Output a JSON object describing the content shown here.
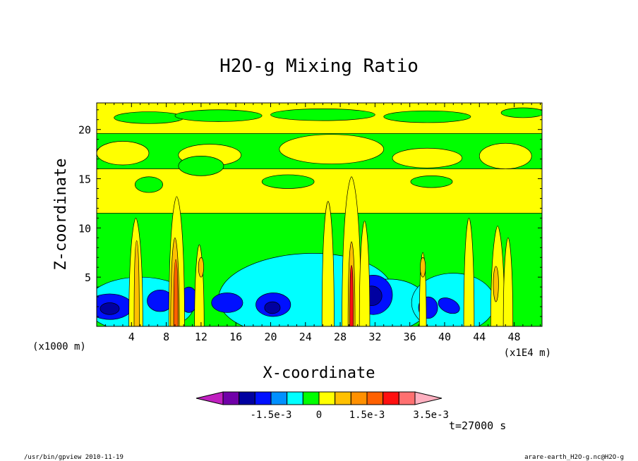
{
  "chart_data": {
    "type": "heatmap",
    "title": "H2O-g Mixing Ratio",
    "xlabel": "X-coordinate",
    "ylabel": "Z-coordinate",
    "x_unit_label": "(x1E4 m)",
    "y_unit_label": "(x1000 m)",
    "xlim": [
      0,
      51.2
    ],
    "ylim": [
      0,
      22.7
    ],
    "x_ticks": [
      4,
      8,
      12,
      16,
      20,
      24,
      28,
      32,
      36,
      40,
      44,
      48
    ],
    "y_ticks": [
      5,
      10,
      15,
      20
    ],
    "x_tick_labels": [
      "4",
      "8",
      "12",
      "16",
      "20",
      "24",
      "28",
      "32",
      "36",
      "40",
      "44",
      "48"
    ],
    "y_tick_labels": [
      "5",
      "10",
      "15",
      "20"
    ],
    "levels": [
      -0.0035,
      -0.003,
      -0.0025,
      -0.002,
      -0.0015,
      -0.001,
      -0.0005,
      0,
      0.0005,
      0.001,
      0.0015,
      0.002,
      0.0025,
      0.003,
      0.0035
    ],
    "colorbar_labels": [
      {
        "text": "-1.5e-3",
        "value": -0.0015
      },
      {
        "text": "0",
        "value": 0
      },
      {
        "text": "1.5e-3",
        "value": 0.0015
      },
      {
        "text": "3.5e-3",
        "value": 0.0035
      }
    ],
    "colors": [
      "#c020c0",
      "#7000a8",
      "#0000a0",
      "#0010ff",
      "#0090ff",
      "#00ffff",
      "#00ff00",
      "#ffff00",
      "#ffc000",
      "#ff9000",
      "#ff6000",
      "#ff1010",
      "#ff7070",
      "#ffb0c0"
    ],
    "grid": false
  },
  "annotation": {
    "time": "t=27000 s"
  },
  "footer": {
    "left": "/usr/bin/gpview   2010-11-19",
    "right": "arare-earth_H2O-g.nc@H2O-g"
  }
}
